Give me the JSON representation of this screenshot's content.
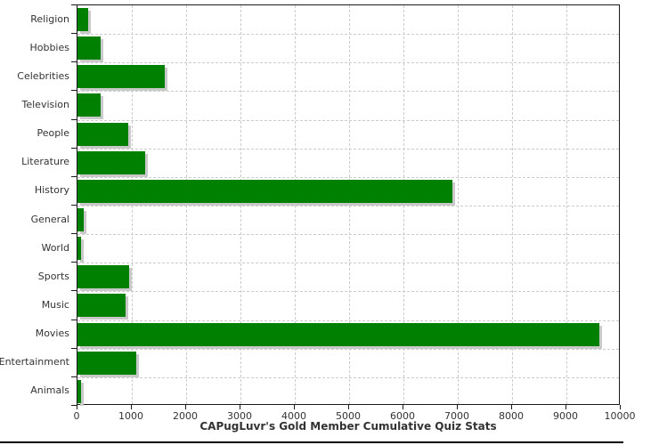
{
  "title": "CAPugLuvr's Gold Member Cumulative Quiz Stats",
  "colors": {
    "bar": "#008000",
    "bar_shadow": "#c9c9c9",
    "grid": "#cccccc",
    "axis": "#1a1a1a",
    "text": "#333333",
    "background": "#ffffff",
    "bottom_rule": "#000000"
  },
  "chart_data": {
    "type": "bar",
    "orientation": "horizontal",
    "title": "CAPugLuvr's Gold Member Cumulative Quiz Stats",
    "categories": [
      "Religion",
      "Hobbies",
      "Celebrities",
      "Television",
      "People",
      "Literature",
      "History",
      "General",
      "World",
      "Sports",
      "Music",
      "Movies",
      "Entertainment",
      "Animals"
    ],
    "values": [
      190,
      420,
      1600,
      420,
      930,
      1240,
      6900,
      120,
      60,
      950,
      880,
      9600,
      1090,
      70
    ],
    "xlabel": "",
    "ylabel": "",
    "xlim": [
      0,
      10000
    ],
    "xticks": [
      0,
      1000,
      2000,
      3000,
      4000,
      5000,
      6000,
      7000,
      8000,
      9000,
      10000
    ],
    "grid": "dashed",
    "legend": "none"
  }
}
